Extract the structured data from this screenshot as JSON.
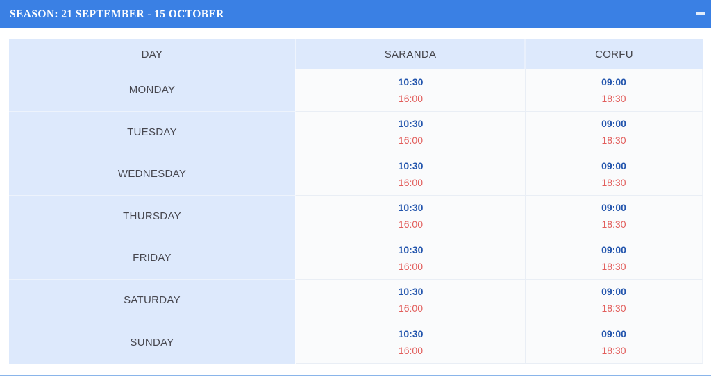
{
  "accordion": {
    "title": "SEASON: 21 SEPTEMBER - 15 OCTOBER",
    "collapse_icon": "minus-icon",
    "state": "expanded"
  },
  "colors": {
    "header_bg": "#3a80e4",
    "header_text": "#ffffff",
    "cell_blue": "#dde9fc",
    "times_bg": "#fafbfc",
    "heading_text": "#45454b",
    "day_text": "#47474f",
    "time_primary": "#2355ad",
    "time_secondary": "#e25d5b",
    "divider": "#8ab5ea"
  },
  "table": {
    "columns": [
      "DAY",
      "SARANDA",
      "CORFU"
    ],
    "rows": [
      {
        "day": "MONDAY",
        "saranda": [
          "10:30",
          "16:00"
        ],
        "corfu": [
          "09:00",
          "18:30"
        ]
      },
      {
        "day": "TUESDAY",
        "saranda": [
          "10:30",
          "16:00"
        ],
        "corfu": [
          "09:00",
          "18:30"
        ]
      },
      {
        "day": "WEDNESDAY",
        "saranda": [
          "10:30",
          "16:00"
        ],
        "corfu": [
          "09:00",
          "18:30"
        ]
      },
      {
        "day": "THURSDAY",
        "saranda": [
          "10:30",
          "16:00"
        ],
        "corfu": [
          "09:00",
          "18:30"
        ]
      },
      {
        "day": "FRIDAY",
        "saranda": [
          "10:30",
          "16:00"
        ],
        "corfu": [
          "09:00",
          "18:30"
        ]
      },
      {
        "day": "SATURDAY",
        "saranda": [
          "10:30",
          "16:00"
        ],
        "corfu": [
          "09:00",
          "18:30"
        ]
      },
      {
        "day": "SUNDAY",
        "saranda": [
          "10:30",
          "16:00"
        ],
        "corfu": [
          "09:00",
          "18:30"
        ]
      }
    ]
  }
}
